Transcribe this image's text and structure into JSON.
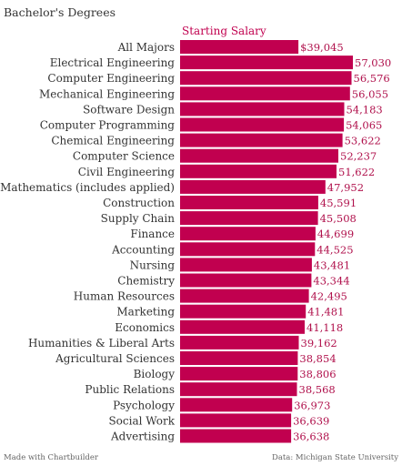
{
  "title": "Bachelor's Degrees",
  "footer": {
    "left": "Made with Chartbuilder",
    "right": "Data: Michigan State University"
  },
  "colors": {
    "bar": "#c1004f",
    "value_text": "#b0114c",
    "category_text": "#333333",
    "series_title": "#c1004f"
  },
  "chart_data": {
    "type": "bar",
    "orientation": "horizontal",
    "series": [
      {
        "name": "Starting Salary",
        "values": [
          39045,
          57030,
          56576,
          56055,
          54183,
          54065,
          53622,
          52237,
          51622,
          47952,
          45591,
          45508,
          44699,
          44525,
          43481,
          43344,
          42495,
          41481,
          41118,
          39162,
          38854,
          38806,
          38568,
          36973,
          36639,
          36638
        ]
      }
    ],
    "categories": [
      "All Majors",
      "Electrical Engineering",
      "Computer Engineering",
      "Mechanical Engineering",
      "Software Design",
      "Computer Programming",
      "Chemical Engineering",
      "Computer Science",
      "Civil Engineering",
      "Mathematics (includes applied)",
      "Construction",
      "Supply Chain",
      "Finance",
      "Accounting",
      "Nursing",
      "Chemistry",
      "Human Resources",
      "Marketing",
      "Economics",
      "Humanities & Liberal Arts",
      "Agricultural Sciences",
      "Biology",
      "Public Relations",
      "Psychology",
      "Social Work",
      "Advertising"
    ],
    "value_labels": [
      "$39,045",
      "57,030",
      "56,576",
      "56,055",
      "54,183",
      "54,065",
      "53,622",
      "52,237",
      "51,622",
      "47,952",
      "45,591",
      "45,508",
      "44,699",
      "44,525",
      "43,481",
      "43,344",
      "42,495",
      "41,481",
      "41,118",
      "39,162",
      "38,854",
      "38,806",
      "38,568",
      "36,973",
      "36,639",
      "36,638"
    ],
    "xlim": [
      0,
      57030
    ],
    "grid": false,
    "legend": "top"
  }
}
